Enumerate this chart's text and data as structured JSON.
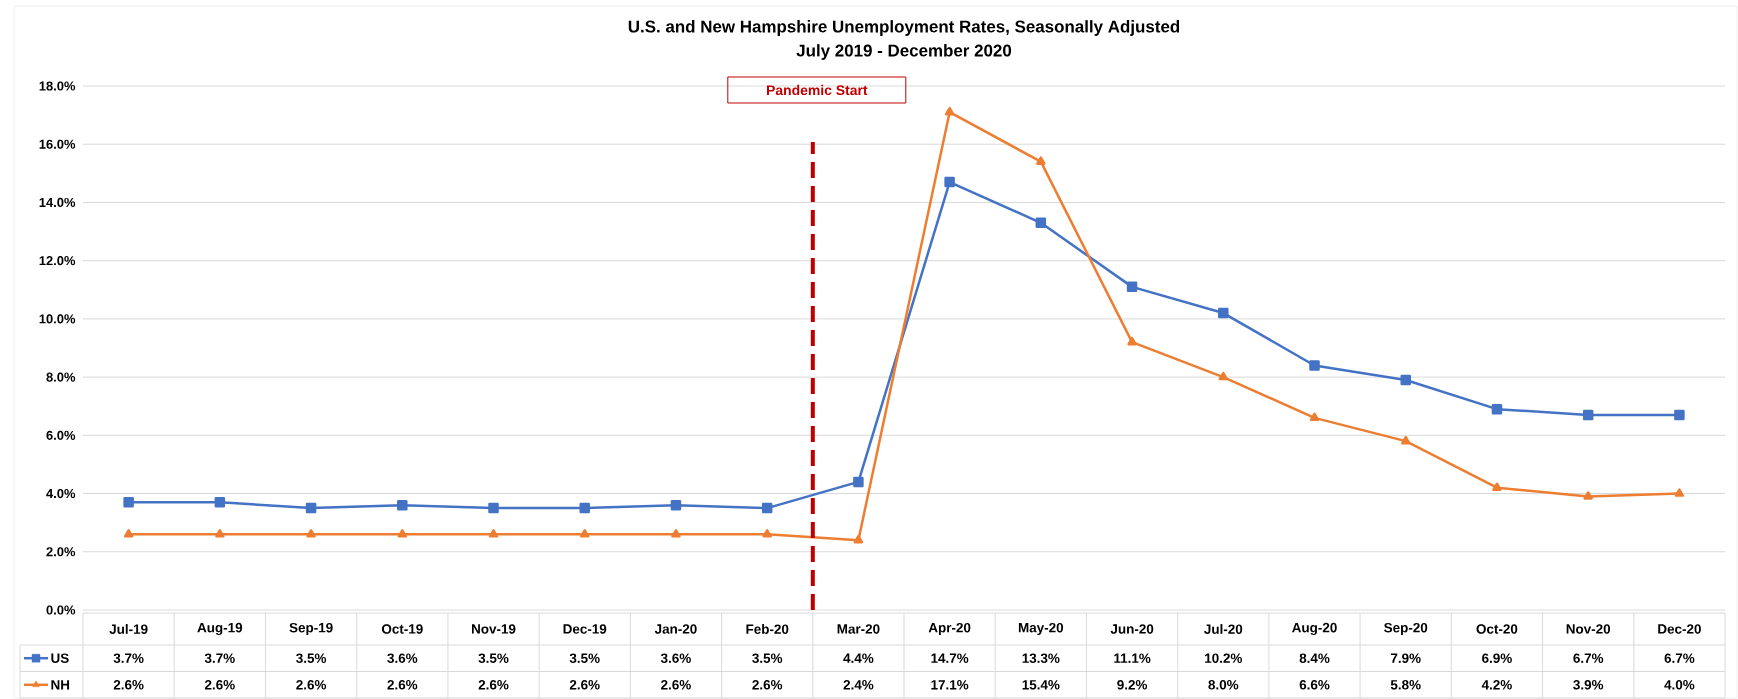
{
  "chart_data": {
    "type": "line",
    "title": "U.S. and New Hampshire Unemployment Rates, Seasonally Adjusted",
    "subtitle": "July 2019 - December 2020",
    "categories": [
      "Jul-19",
      "Aug-19",
      "Sep-19",
      "Oct-19",
      "Nov-19",
      "Dec-19",
      "Jan-20",
      "Feb-20",
      "Mar-20",
      "Apr-20",
      "May-20",
      "Jun-20",
      "Jul-20",
      "Aug-20",
      "Sep-20",
      "Oct-20",
      "Nov-20",
      "Dec-20"
    ],
    "series": [
      {
        "name": "US",
        "color": "#4472c4",
        "marker": "square",
        "values": [
          3.7,
          3.7,
          3.5,
          3.6,
          3.5,
          3.5,
          3.6,
          3.5,
          4.4,
          14.7,
          13.3,
          11.1,
          10.2,
          8.4,
          7.9,
          6.9,
          6.7,
          6.7
        ],
        "value_labels": [
          "3.7%",
          "3.7%",
          "3.5%",
          "3.6%",
          "3.5%",
          "3.5%",
          "3.6%",
          "3.5%",
          "4.4%",
          "14.7%",
          "13.3%",
          "11.1%",
          "10.2%",
          "8.4%",
          "7.9%",
          "6.9%",
          "6.7%",
          "6.7%"
        ]
      },
      {
        "name": "NH",
        "color": "#ed7d31",
        "marker": "triangle",
        "values": [
          2.6,
          2.6,
          2.6,
          2.6,
          2.6,
          2.6,
          2.6,
          2.6,
          2.4,
          17.1,
          15.4,
          9.2,
          8.0,
          6.6,
          5.8,
          4.2,
          3.9,
          4.0
        ],
        "value_labels": [
          "2.6%",
          "2.6%",
          "2.6%",
          "2.6%",
          "2.6%",
          "2.6%",
          "2.6%",
          "2.6%",
          "2.4%",
          "17.1%",
          "15.4%",
          "9.2%",
          "8.0%",
          "6.6%",
          "5.8%",
          "4.2%",
          "3.9%",
          "4.0%"
        ]
      }
    ],
    "ylim": [
      0,
      18
    ],
    "yticks": [
      {
        "value": 0,
        "label": "0.0%"
      },
      {
        "value": 2,
        "label": "2.0%"
      },
      {
        "value": 4,
        "label": "4.0%"
      },
      {
        "value": 6,
        "label": "6.0%"
      },
      {
        "value": 8,
        "label": "8.0%"
      },
      {
        "value": 10,
        "label": "10.0%"
      },
      {
        "value": 12,
        "label": "12.0%"
      },
      {
        "value": 14,
        "label": "14.0%"
      },
      {
        "value": 16,
        "label": "16.0%"
      },
      {
        "value": 18,
        "label": "18.0%"
      }
    ],
    "ref_lines": [
      {
        "axis": "x",
        "value": "Mar-20",
        "label": "Pandemic Start",
        "color": "#c00000",
        "line_style": "dashed"
      }
    ],
    "grid": "y",
    "legend": "bottom left",
    "line_style": "solid"
  }
}
